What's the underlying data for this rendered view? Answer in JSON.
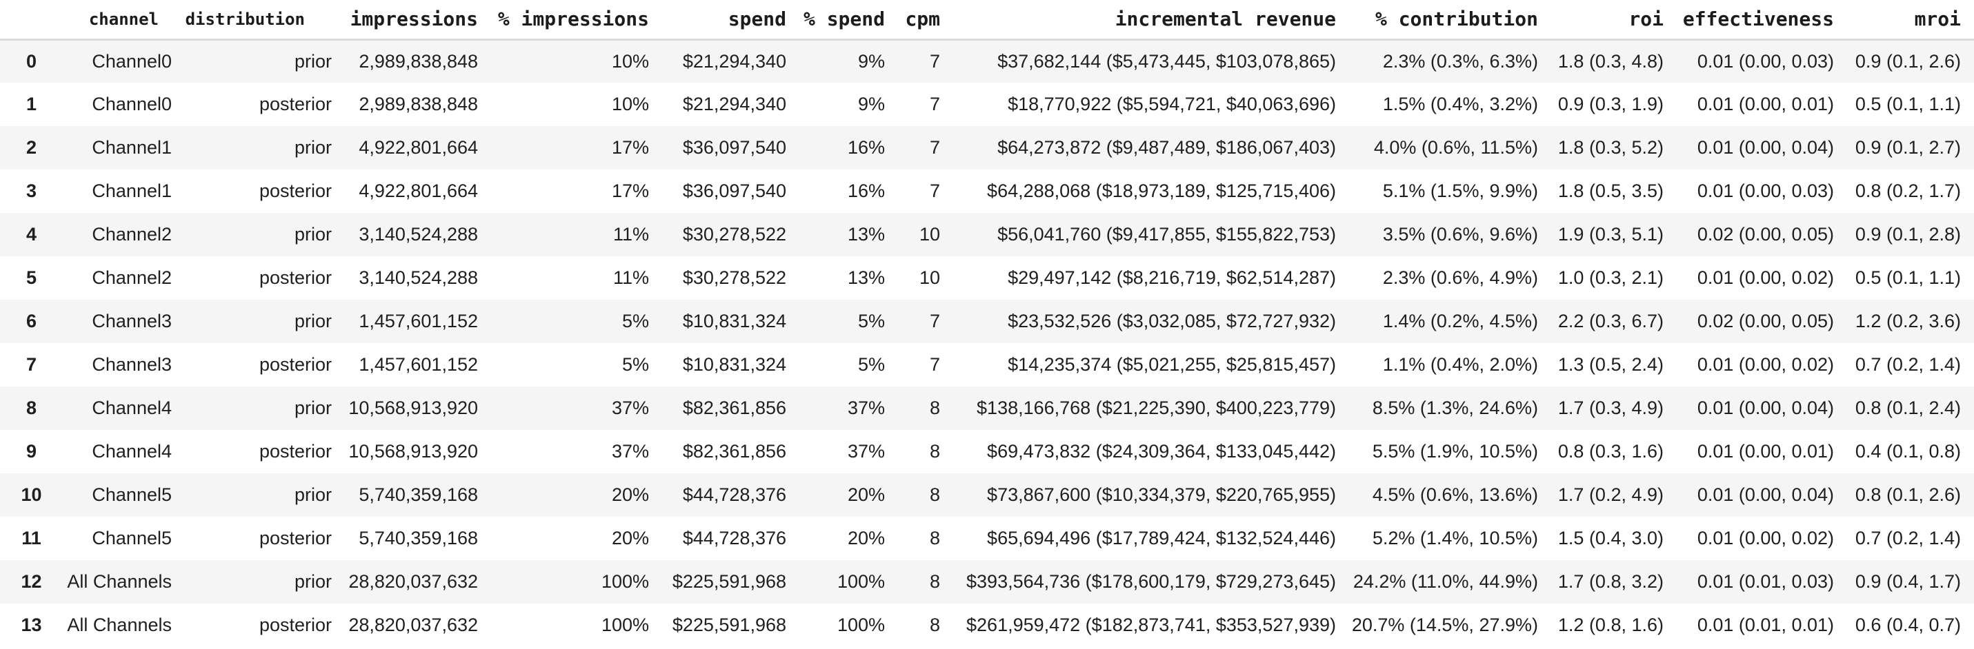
{
  "table": {
    "columns": [
      {
        "key": "row-index",
        "label": ""
      },
      {
        "key": "channel",
        "label": "channel"
      },
      {
        "key": "distribution",
        "label": "distribution"
      },
      {
        "key": "impressions",
        "label": "impressions"
      },
      {
        "key": "pct-impressions",
        "label": "% impressions"
      },
      {
        "key": "spend",
        "label": "spend"
      },
      {
        "key": "pct-spend",
        "label": "% spend"
      },
      {
        "key": "cpm",
        "label": "cpm"
      },
      {
        "key": "incremental-revenue",
        "label": "incremental revenue"
      },
      {
        "key": "pct-contribution",
        "label": "% contribution"
      },
      {
        "key": "roi",
        "label": "roi"
      },
      {
        "key": "effectiveness",
        "label": "effectiveness"
      },
      {
        "key": "mroi",
        "label": "mroi"
      }
    ],
    "rows": [
      [
        "0",
        "Channel0",
        "prior",
        "2,989,838,848",
        "10%",
        "$21,294,340",
        "9%",
        "7",
        "$37,682,144 ($5,473,445, $103,078,865)",
        "2.3% (0.3%, 6.3%)",
        "1.8 (0.3, 4.8)",
        "0.01 (0.00, 0.03)",
        "0.9 (0.1, 2.6)"
      ],
      [
        "1",
        "Channel0",
        "posterior",
        "2,989,838,848",
        "10%",
        "$21,294,340",
        "9%",
        "7",
        "$18,770,922 ($5,594,721, $40,063,696)",
        "1.5% (0.4%, 3.2%)",
        "0.9 (0.3, 1.9)",
        "0.01 (0.00, 0.01)",
        "0.5 (0.1, 1.1)"
      ],
      [
        "2",
        "Channel1",
        "prior",
        "4,922,801,664",
        "17%",
        "$36,097,540",
        "16%",
        "7",
        "$64,273,872 ($9,487,489, $186,067,403)",
        "4.0% (0.6%, 11.5%)",
        "1.8 (0.3, 5.2)",
        "0.01 (0.00, 0.04)",
        "0.9 (0.1, 2.7)"
      ],
      [
        "3",
        "Channel1",
        "posterior",
        "4,922,801,664",
        "17%",
        "$36,097,540",
        "16%",
        "7",
        "$64,288,068 ($18,973,189, $125,715,406)",
        "5.1% (1.5%, 9.9%)",
        "1.8 (0.5, 3.5)",
        "0.01 (0.00, 0.03)",
        "0.8 (0.2, 1.7)"
      ],
      [
        "4",
        "Channel2",
        "prior",
        "3,140,524,288",
        "11%",
        "$30,278,522",
        "13%",
        "10",
        "$56,041,760 ($9,417,855, $155,822,753)",
        "3.5% (0.6%, 9.6%)",
        "1.9 (0.3, 5.1)",
        "0.02 (0.00, 0.05)",
        "0.9 (0.1, 2.8)"
      ],
      [
        "5",
        "Channel2",
        "posterior",
        "3,140,524,288",
        "11%",
        "$30,278,522",
        "13%",
        "10",
        "$29,497,142 ($8,216,719, $62,514,287)",
        "2.3% (0.6%, 4.9%)",
        "1.0 (0.3, 2.1)",
        "0.01 (0.00, 0.02)",
        "0.5 (0.1, 1.1)"
      ],
      [
        "6",
        "Channel3",
        "prior",
        "1,457,601,152",
        "5%",
        "$10,831,324",
        "5%",
        "7",
        "$23,532,526 ($3,032,085, $72,727,932)",
        "1.4% (0.2%, 4.5%)",
        "2.2 (0.3, 6.7)",
        "0.02 (0.00, 0.05)",
        "1.2 (0.2, 3.6)"
      ],
      [
        "7",
        "Channel3",
        "posterior",
        "1,457,601,152",
        "5%",
        "$10,831,324",
        "5%",
        "7",
        "$14,235,374 ($5,021,255, $25,815,457)",
        "1.1% (0.4%, 2.0%)",
        "1.3 (0.5, 2.4)",
        "0.01 (0.00, 0.02)",
        "0.7 (0.2, 1.4)"
      ],
      [
        "8",
        "Channel4",
        "prior",
        "10,568,913,920",
        "37%",
        "$82,361,856",
        "37%",
        "8",
        "$138,166,768 ($21,225,390, $400,223,779)",
        "8.5% (1.3%, 24.6%)",
        "1.7 (0.3, 4.9)",
        "0.01 (0.00, 0.04)",
        "0.8 (0.1, 2.4)"
      ],
      [
        "9",
        "Channel4",
        "posterior",
        "10,568,913,920",
        "37%",
        "$82,361,856",
        "37%",
        "8",
        "$69,473,832 ($24,309,364, $133,045,442)",
        "5.5% (1.9%, 10.5%)",
        "0.8 (0.3, 1.6)",
        "0.01 (0.00, 0.01)",
        "0.4 (0.1, 0.8)"
      ],
      [
        "10",
        "Channel5",
        "prior",
        "5,740,359,168",
        "20%",
        "$44,728,376",
        "20%",
        "8",
        "$73,867,600 ($10,334,379, $220,765,955)",
        "4.5% (0.6%, 13.6%)",
        "1.7 (0.2, 4.9)",
        "0.01 (0.00, 0.04)",
        "0.8 (0.1, 2.6)"
      ],
      [
        "11",
        "Channel5",
        "posterior",
        "5,740,359,168",
        "20%",
        "$44,728,376",
        "20%",
        "8",
        "$65,694,496 ($17,789,424, $132,524,446)",
        "5.2% (1.4%, 10.5%)",
        "1.5 (0.4, 3.0)",
        "0.01 (0.00, 0.02)",
        "0.7 (0.2, 1.4)"
      ],
      [
        "12",
        "All Channels",
        "prior",
        "28,820,037,632",
        "100%",
        "$225,591,968",
        "100%",
        "8",
        "$393,564,736 ($178,600,179, $729,273,645)",
        "24.2% (11.0%, 44.9%)",
        "1.7 (0.8, 3.2)",
        "0.01 (0.01, 0.03)",
        "0.9 (0.4, 1.7)"
      ],
      [
        "13",
        "All Channels",
        "posterior",
        "28,820,037,632",
        "100%",
        "$225,591,968",
        "100%",
        "8",
        "$261,959,472 ($182,873,741, $353,527,939)",
        "20.7% (14.5%, 27.9%)",
        "1.2 (0.8, 1.6)",
        "0.01 (0.01, 0.01)",
        "0.6 (0.4, 0.7)"
      ]
    ]
  },
  "colors": {
    "background": "#ffffff",
    "row_stripe": "#f5f5f6",
    "text": "#1f1f1f",
    "header_divider": "#d9d9d9"
  }
}
